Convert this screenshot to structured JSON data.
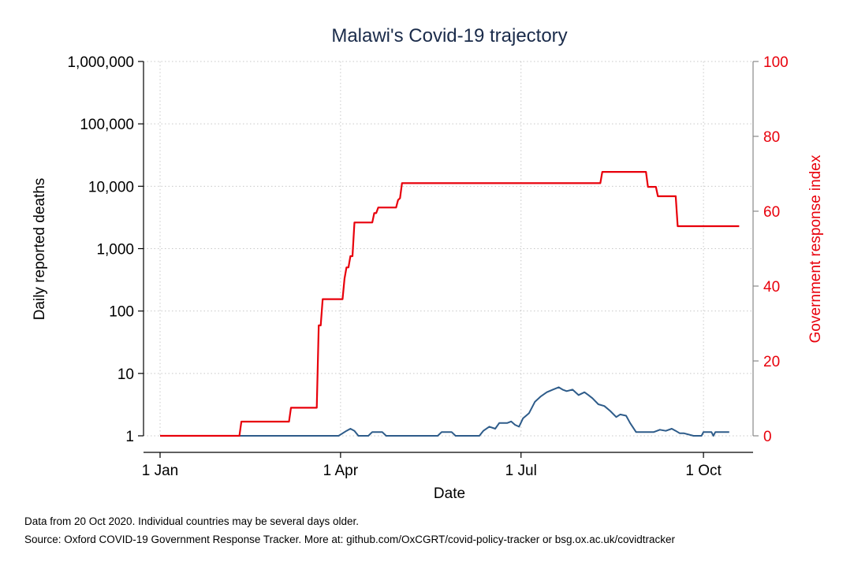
{
  "chart_data": {
    "type": "line",
    "title": "Malawi's Covid-19 trajectory",
    "xlabel": "Date",
    "ylabel": "Daily reported deaths",
    "ylabel_right": "Government response index",
    "x_ticks": [
      "1 Jan",
      "1 Apr",
      "1 Jul",
      "1 Oct"
    ],
    "x_tick_days": [
      0,
      91,
      182,
      274
    ],
    "y_ticks": [
      "1",
      "10",
      "100",
      "1,000",
      "10,000",
      "100,000",
      "1,000,000"
    ],
    "y_tick_values": [
      1,
      10,
      100,
      1000,
      10000,
      100000,
      1000000
    ],
    "y_scale": "log",
    "ylim": [
      1,
      1000000
    ],
    "y2_ticks": [
      "0",
      "20",
      "40",
      "60",
      "80",
      "100"
    ],
    "y2_tick_values": [
      0,
      20,
      40,
      60,
      80,
      100
    ],
    "y2lim": [
      0,
      100
    ],
    "grid": true,
    "series": [
      {
        "axis": "left",
        "color": "#2e5c8a",
        "x": [
          "2020-01-01",
          "2020-03-31",
          "2020-04-04",
          "2020-04-06",
          "2020-04-08",
          "2020-04-10",
          "2020-04-15",
          "2020-04-17",
          "2020-04-22",
          "2020-04-24",
          "2020-05-20",
          "2020-05-22",
          "2020-05-27",
          "2020-05-29",
          "2020-06-10",
          "2020-06-12",
          "2020-06-15",
          "2020-06-18",
          "2020-06-20",
          "2020-06-24",
          "2020-06-26",
          "2020-06-28",
          "2020-06-30",
          "2020-07-02",
          "2020-07-05",
          "2020-07-08",
          "2020-07-11",
          "2020-07-14",
          "2020-07-17",
          "2020-07-20",
          "2020-07-22",
          "2020-07-24",
          "2020-07-27",
          "2020-07-30",
          "2020-08-02",
          "2020-08-04",
          "2020-08-06",
          "2020-08-09",
          "2020-08-12",
          "2020-08-15",
          "2020-08-18",
          "2020-08-20",
          "2020-08-23",
          "2020-08-25",
          "2020-08-28",
          "2020-09-06",
          "2020-09-09",
          "2020-09-12",
          "2020-09-15",
          "2020-09-17",
          "2020-09-19",
          "2020-09-21",
          "2020-09-26",
          "2020-09-28",
          "2020-09-30",
          "2020-10-01",
          "2020-10-05",
          "2020-10-06",
          "2020-10-07",
          "2020-10-14"
        ],
        "y": [
          1,
          1,
          1.2,
          1.3,
          1.2,
          1,
          1,
          1.15,
          1.15,
          1,
          1,
          1.15,
          1.15,
          1,
          1,
          1.2,
          1.4,
          1.3,
          1.6,
          1.6,
          1.7,
          1.5,
          1.4,
          1.9,
          2.3,
          3.5,
          4.3,
          5,
          5.5,
          6,
          5.5,
          5.2,
          5.5,
          4.5,
          5,
          4.5,
          4,
          3.2,
          3,
          2.5,
          2,
          2.2,
          2.1,
          1.6,
          1.15,
          1.15,
          1.25,
          1.2,
          1.3,
          1.2,
          1.1,
          1.1,
          1,
          1,
          1,
          1.15,
          1.15,
          1,
          1.15,
          1.15
        ]
      },
      {
        "axis": "right",
        "color": "#e8000b",
        "x": [
          "2020-01-01",
          "2020-02-10",
          "2020-02-11",
          "2020-03-06",
          "2020-03-07",
          "2020-03-20",
          "2020-03-21",
          "2020-03-22",
          "2020-03-23",
          "2020-03-24",
          "2020-04-02",
          "2020-04-03",
          "2020-04-04",
          "2020-04-05",
          "2020-04-06",
          "2020-04-07",
          "2020-04-08",
          "2020-04-09",
          "2020-04-10",
          "2020-04-17",
          "2020-04-18",
          "2020-04-19",
          "2020-04-20",
          "2020-04-29",
          "2020-04-30",
          "2020-05-01",
          "2020-05-02",
          "2020-08-10",
          "2020-08-11",
          "2020-09-02",
          "2020-09-03",
          "2020-09-07",
          "2020-09-08",
          "2020-09-17",
          "2020-09-18",
          "2020-10-19"
        ],
        "y": [
          0,
          0,
          3.8,
          3.8,
          7.5,
          7.5,
          29.5,
          29.5,
          36.5,
          36.5,
          36.5,
          42,
          45,
          45,
          48,
          48,
          57,
          57,
          57,
          57,
          59.5,
          59.5,
          61,
          61,
          63,
          63.5,
          67.5,
          67.5,
          70.5,
          70.5,
          66.5,
          66.5,
          64,
          64,
          56,
          56
        ]
      }
    ],
    "notes": [
      "Data from 20 Oct 2020. Individual countries may be several days older.",
      "Source: Oxford COVID-19 Government Response Tracker. More at: github.com/OxCGRT/covid-policy-tracker or bsg.ox.ac.uk/covidtracker"
    ]
  }
}
